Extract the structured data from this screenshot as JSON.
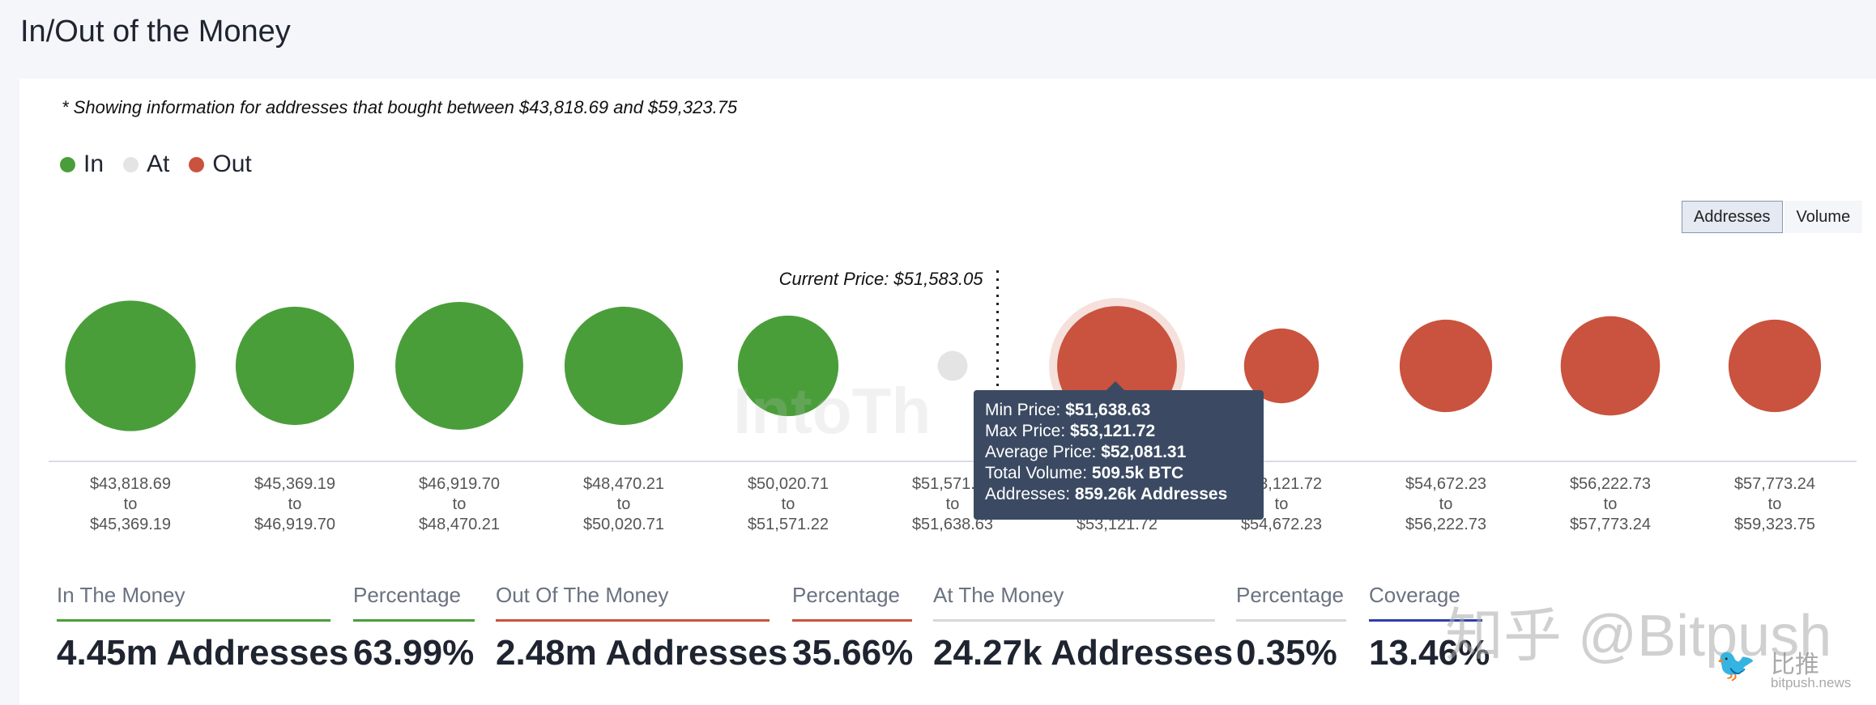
{
  "page": {
    "title": "In/Out of the Money",
    "note": "* Showing information for addresses that bought between $43,818.69 and $59,323.75"
  },
  "legend": [
    {
      "label": "In",
      "color": "#4a9e3a"
    },
    {
      "label": "At",
      "color": "#e4e4e4"
    },
    {
      "label": "Out",
      "color": "#c9533e"
    }
  ],
  "toggle": {
    "addresses_label": "Addresses",
    "volume_label": "Volume",
    "active": "Addresses"
  },
  "chart_data": {
    "type": "bubble",
    "current_price_label": "Current Price: $51,583.05",
    "current_price": 51583.05,
    "metric": "Addresses",
    "categories": [
      {
        "from": "$43,818.69",
        "to": "$45,369.19",
        "status": "In",
        "relative_size": 0.96
      },
      {
        "from": "$45,369.19",
        "to": "$46,919.70",
        "status": "In",
        "relative_size": 0.87
      },
      {
        "from": "$46,919.70",
        "to": "$48,470.21",
        "status": "In",
        "relative_size": 0.94
      },
      {
        "from": "$48,470.21",
        "to": "$50,020.71",
        "status": "In",
        "relative_size": 0.87
      },
      {
        "from": "$50,020.71",
        "to": "$51,571.22",
        "status": "In",
        "relative_size": 0.74
      },
      {
        "from": "$51,571.22",
        "to": "$51,638.63",
        "status": "At",
        "relative_size": 0.22
      },
      {
        "from": "$51,638.63",
        "to": "$53,121.72",
        "status": "Out",
        "relative_size": 0.88
      },
      {
        "from": "$53,121.72",
        "to": "$54,672.23",
        "status": "Out",
        "relative_size": 0.55
      },
      {
        "from": "$54,672.23",
        "to": "$56,222.73",
        "status": "Out",
        "relative_size": 0.68
      },
      {
        "from": "$56,222.73",
        "to": "$57,773.24",
        "status": "Out",
        "relative_size": 0.73
      },
      {
        "from": "$57,773.24",
        "to": "$59,323.75",
        "status": "Out",
        "relative_size": 0.68
      }
    ],
    "to_word": "to",
    "highlighted_index": 6
  },
  "tooltip": {
    "min_label": "Min Price: ",
    "min_value": "$51,638.63",
    "max_label": "Max Price: ",
    "max_value": "$53,121.72",
    "avg_label": "Average Price: ",
    "avg_value": "$52,081.31",
    "vol_label": "Total Volume: ",
    "vol_value": "509.5k BTC",
    "addr_label": "Addresses: ",
    "addr_value": "859.26k Addresses"
  },
  "stats": [
    {
      "label": "In The Money",
      "value": "4.45m Addresses",
      "color": "#4a9e3a"
    },
    {
      "label": "Percentage",
      "value": "63.99%",
      "color": "#4a9e3a"
    },
    {
      "label": "Out Of The Money",
      "value": "2.48m Addresses",
      "color": "#c9533e"
    },
    {
      "label": "Percentage",
      "value": "35.66%",
      "color": "#c9533e"
    },
    {
      "label": "At The Money",
      "value": "24.27k Addresses",
      "color": "#d8d8d8"
    },
    {
      "label": "Percentage",
      "value": "0.35%",
      "color": "#d8d8d8"
    },
    {
      "label": "Coverage",
      "value": "13.46%",
      "color": "#2f3fa8"
    }
  ],
  "watermarks": {
    "center": "IntoTh",
    "zhihu": "知乎 @Bitpush",
    "bitpush_cn": "比推",
    "bitpush_url": "bitpush.news"
  }
}
